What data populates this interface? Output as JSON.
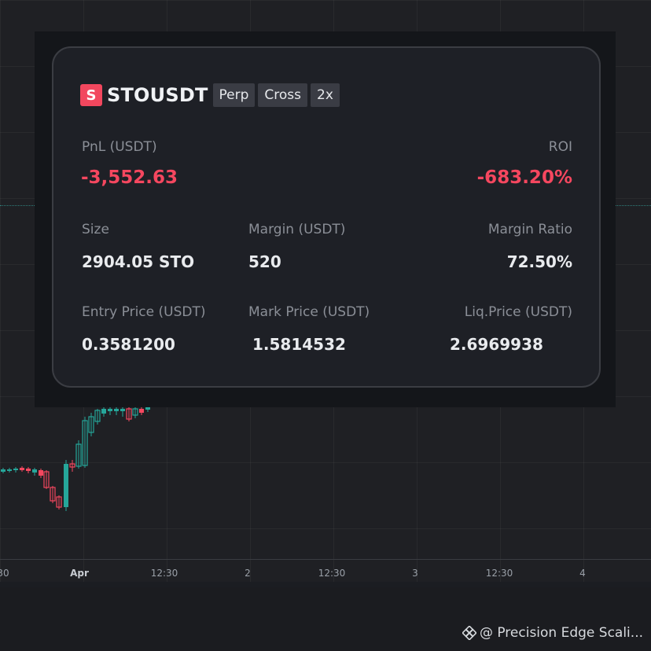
{
  "position": {
    "logo_letter": "S",
    "symbol": "STOUSDT",
    "tags": [
      "Perp",
      "Cross",
      "2x"
    ],
    "pnl_label": "PnL (USDT)",
    "pnl_value": "-3,552.63",
    "roi_label": "ROI",
    "roi_value": "-683.20%",
    "size_label": "Size",
    "size_value": "2904.05 STO",
    "margin_label": "Margin (USDT)",
    "margin_value": "520",
    "margin_ratio_label": "Margin Ratio",
    "margin_ratio_value": "72.50%",
    "entry_label": "Entry Price (USDT)",
    "entry_value": "0.3581200",
    "mark_label": "Mark Price (USDT)",
    "mark_value": "1.5814532",
    "liq_label": "Liq.Price (USDT)",
    "liq_value": "2.6969938"
  },
  "time_axis": [
    "30",
    "Apr",
    "12:30",
    "2",
    "12:30",
    "3",
    "12:30",
    "4"
  ],
  "watermark": "@ Precision Edge Scali...",
  "colors": {
    "negative": "#f5475f",
    "positive": "#26a69a",
    "logo": "#f2475e"
  }
}
